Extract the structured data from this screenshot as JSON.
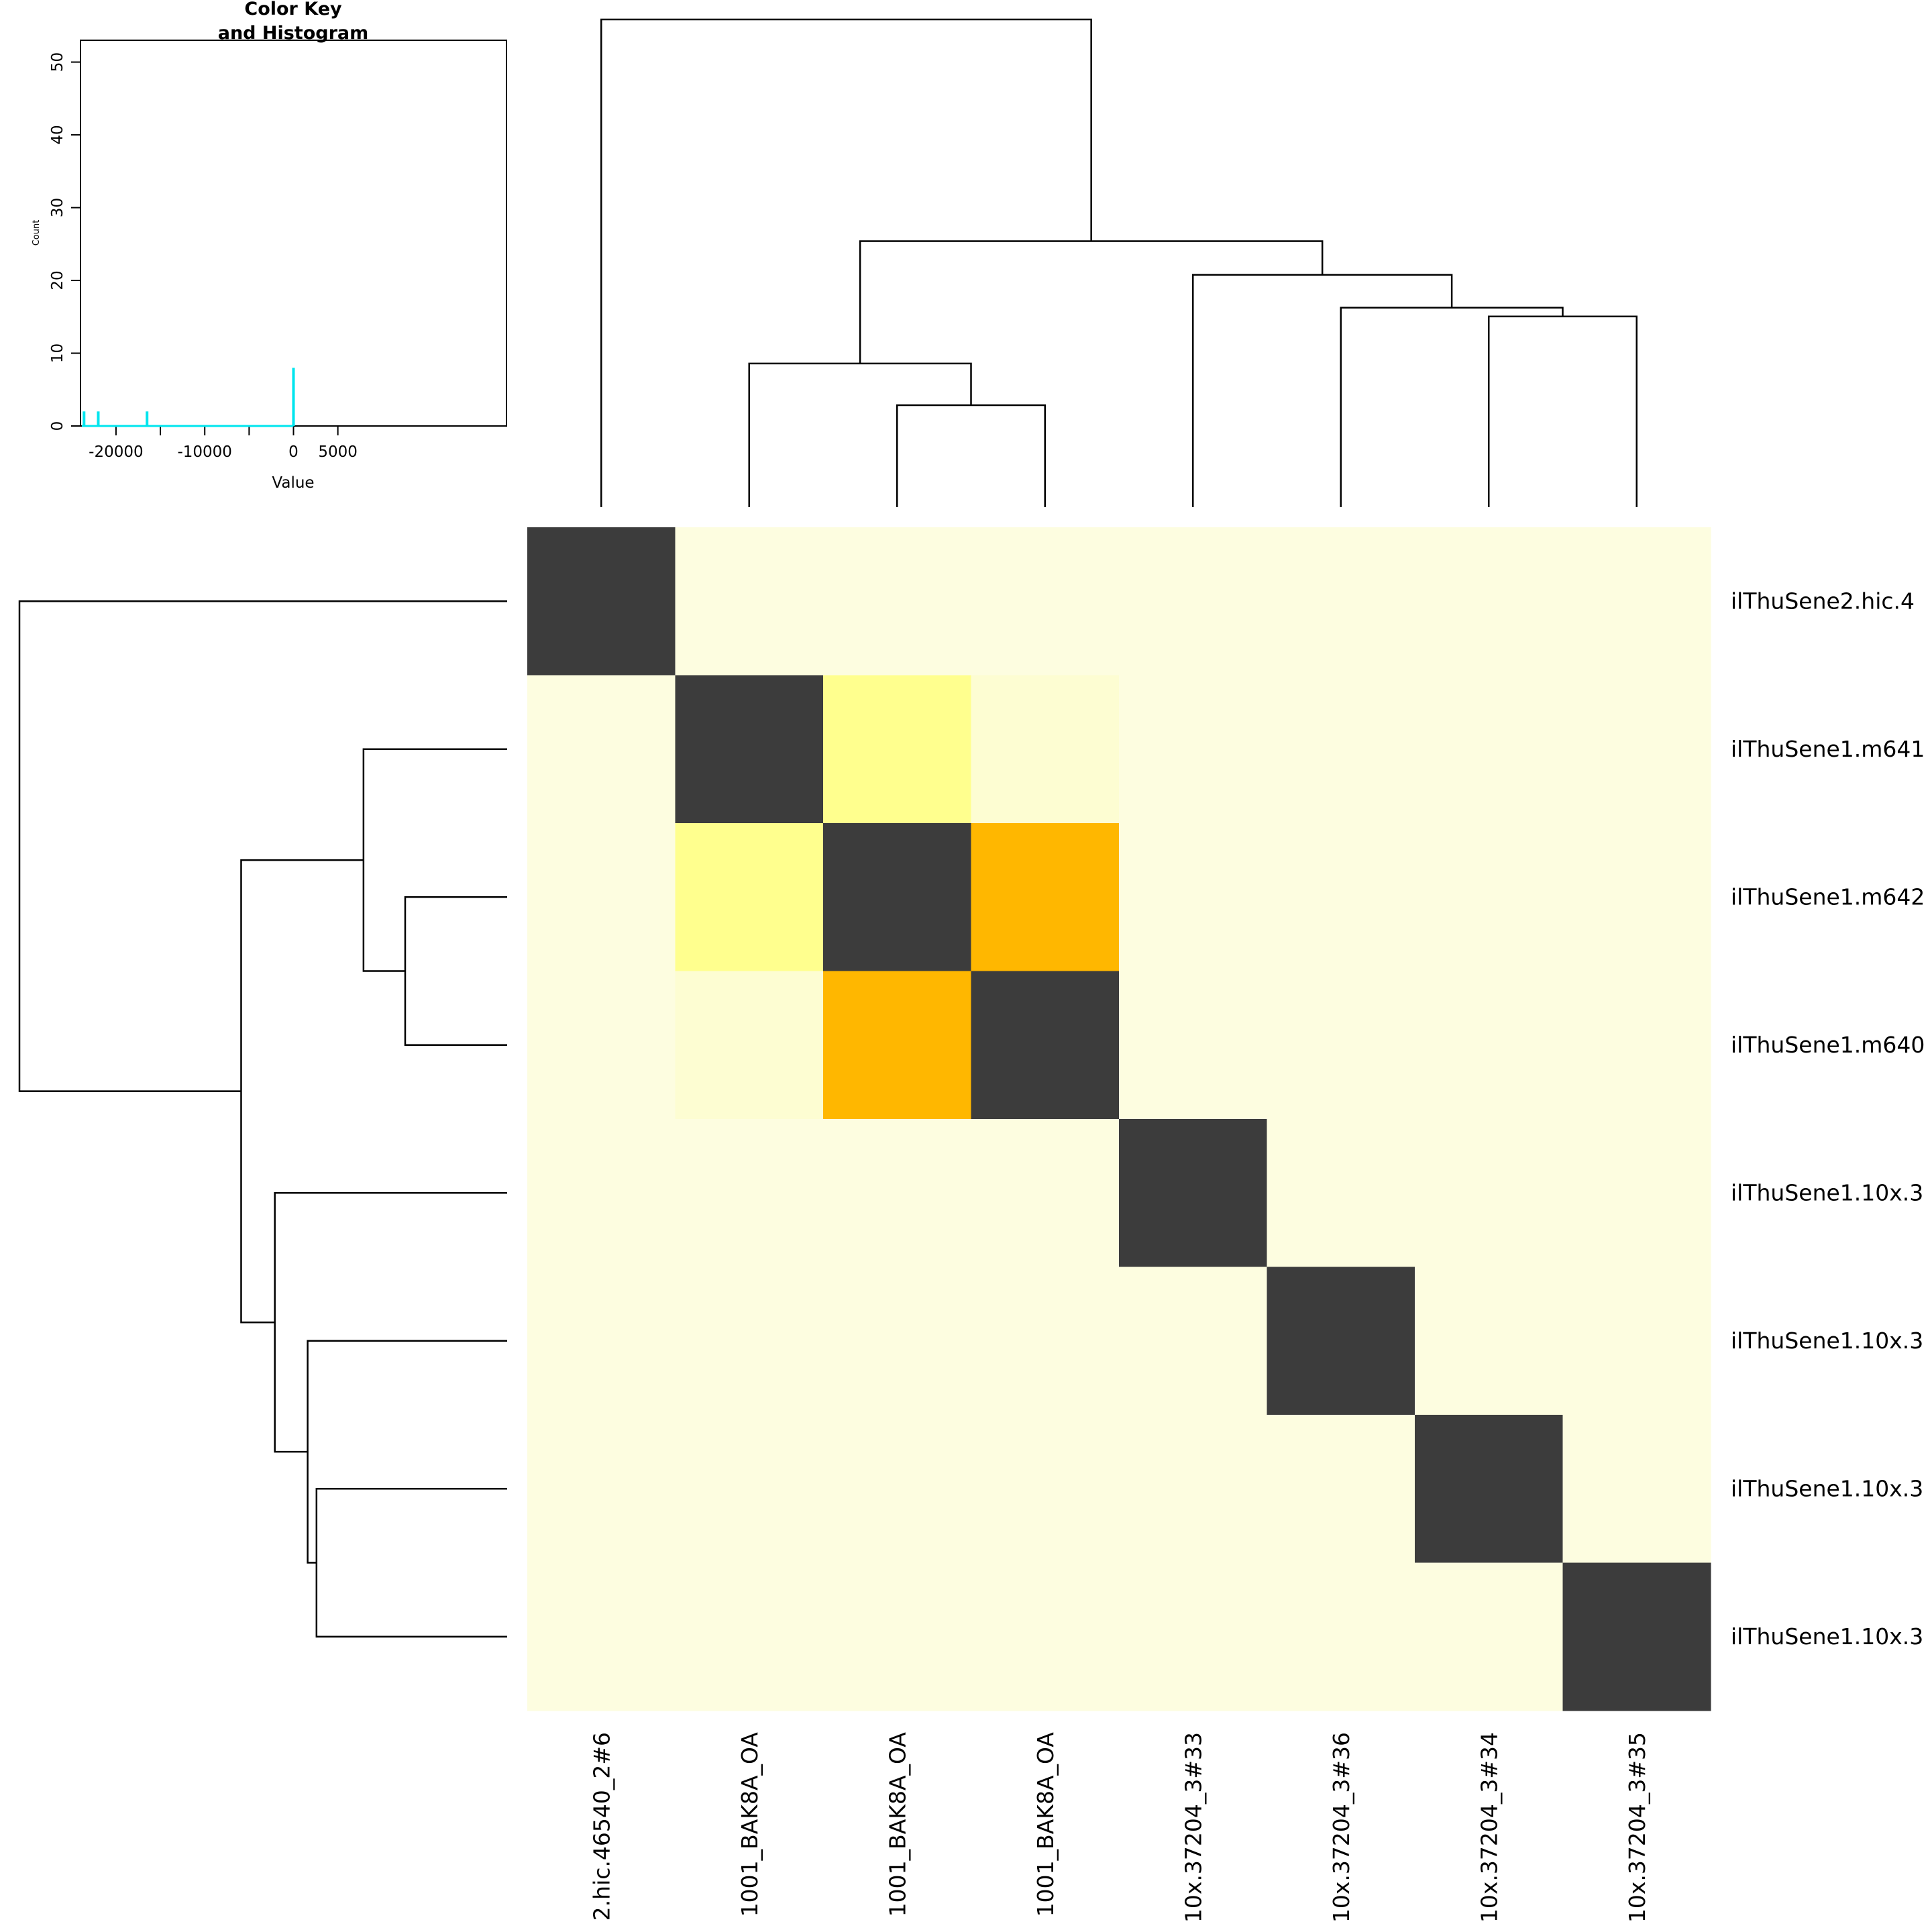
{
  "chart_data": [
    {
      "type": "heatmap",
      "row_labels_visible": [
        "ilThuSene2.hic.4",
        "ilThuSene1.m641",
        "ilThuSene1.m642",
        "ilThuSene1.m640",
        "ilThuSene1.10x.3",
        "ilThuSene1.10x.3",
        "ilThuSene1.10x.3",
        "ilThuSene1.10x.3"
      ],
      "col_labels_visible": [
        "2.hic.46540_2#6",
        "1001_BAK8A_OA",
        "1001_BAK8A_OA",
        "1001_BAK8A_OA",
        "10x.37204_3#33",
        "10x.37204_3#36",
        "10x.37204_3#34",
        "10x.37204_3#35"
      ],
      "cells_color": [
        [
          "#3c3c3c",
          "#fdfde0",
          "#fdfde0",
          "#fdfde0",
          "#fdfde0",
          "#fdfde0",
          "#fdfde0",
          "#fdfde0"
        ],
        [
          "#fdfde0",
          "#3c3c3c",
          "#ffff8e",
          "#fdfdd2",
          "#fdfde0",
          "#fdfde0",
          "#fdfde0",
          "#fdfde0"
        ],
        [
          "#fdfde0",
          "#ffff8e",
          "#3c3c3c",
          "#ffb700",
          "#fdfde0",
          "#fdfde0",
          "#fdfde0",
          "#fdfde0"
        ],
        [
          "#fdfde0",
          "#fdfdd2",
          "#ffb700",
          "#3c3c3c",
          "#fdfde0",
          "#fdfde0",
          "#fdfde0",
          "#fdfde0"
        ],
        [
          "#fdfde0",
          "#fdfde0",
          "#fdfde0",
          "#fdfde0",
          "#3c3c3c",
          "#fdfde0",
          "#fdfde0",
          "#fdfde0"
        ],
        [
          "#fdfde0",
          "#fdfde0",
          "#fdfde0",
          "#fdfde0",
          "#fdfde0",
          "#3c3c3c",
          "#fdfde0",
          "#fdfde0"
        ],
        [
          "#fdfde0",
          "#fdfde0",
          "#fdfde0",
          "#fdfde0",
          "#fdfde0",
          "#fdfde0",
          "#3c3c3c",
          "#fdfde0"
        ],
        [
          "#fdfde0",
          "#fdfde0",
          "#fdfde0",
          "#fdfde0",
          "#fdfde0",
          "#fdfde0",
          "#fdfde0",
          "#3c3c3c"
        ]
      ],
      "dendrogram": {
        "leaves_order": [
          "0",
          "1",
          "2",
          "3",
          "4",
          "5",
          "6",
          "7"
        ],
        "merges": [
          {
            "left": 2,
            "right": 3,
            "height": 11.5
          },
          {
            "left": 1,
            "right": "m0",
            "height": 16.2
          },
          {
            "left": 6,
            "right": 7,
            "height": 21.5
          },
          {
            "left": 5,
            "right": "m2",
            "height": 22.5
          },
          {
            "left": 4,
            "right": "m3",
            "height": 26.2
          },
          {
            "left": "m1",
            "right": "m4",
            "height": 30
          },
          {
            "left": 0,
            "right": "m5",
            "height": 55
          }
        ]
      }
    },
    {
      "type": "histogram",
      "title_line1": "Color Key",
      "title_line2": "and Histogram",
      "xlabel": "Value",
      "ylabel": "Count",
      "xlim": [
        -24000,
        24000
      ],
      "ylim": [
        0,
        53
      ],
      "x_ticks": [
        -25000,
        -20000,
        -15000,
        -10000,
        -5000,
        0,
        5000
      ],
      "x_tick_labels": [
        "",
        "-20000",
        "",
        "-10000",
        "",
        "0",
        "5000"
      ],
      "y_ticks": [
        0,
        10,
        20,
        30,
        40,
        50
      ],
      "y_tick_labels": [
        "0",
        "10",
        "20",
        "30",
        "40",
        "50"
      ],
      "line_color": "#00e5ee",
      "bars": [
        {
          "x": -23600,
          "count": 2
        },
        {
          "x": -22000,
          "count": 2
        },
        {
          "x": -16500,
          "count": 2
        },
        {
          "x": 0,
          "count": 8
        }
      ]
    }
  ]
}
